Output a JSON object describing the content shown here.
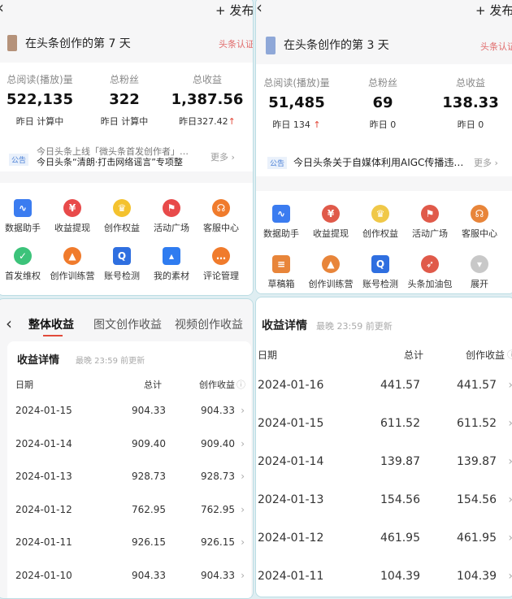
{
  "left_dashboard": {
    "publish_label": "+ 发布",
    "header_title": "在头条创作的第 7 天",
    "cert_label": "头条认证",
    "stats": [
      {
        "label": "总阅读(播放)量",
        "value": "522,135",
        "yesterday": "昨日 计算中",
        "trend": ""
      },
      {
        "label": "总粉丝",
        "value": "322",
        "yesterday": "昨日 计算中",
        "trend": ""
      },
      {
        "label": "总收益",
        "value": "1,387.56",
        "yesterday": "昨日327.42",
        "trend": "↑"
      }
    ],
    "notice": {
      "tag": "公告",
      "line1": "今日头条上线「微头条首发创作者」…",
      "line2": "今日头条“清朗·打击网络谣言”专项整",
      "more": "更多 ›"
    },
    "grid": [
      {
        "label": "数据助手",
        "icon": "chart-icon",
        "color": "#3b7cf0"
      },
      {
        "label": "收益提现",
        "icon": "yuan-icon",
        "color": "#e84a4a"
      },
      {
        "label": "创作权益",
        "icon": "crown-icon",
        "color": "#f4c22e"
      },
      {
        "label": "活动广场",
        "icon": "flag-icon",
        "color": "#e84a4a"
      },
      {
        "label": "客服中心",
        "icon": "headset-icon",
        "color": "#f07b2c"
      },
      {
        "label": "首发维权",
        "icon": "shield-icon",
        "color": "#3cc37a"
      },
      {
        "label": "创作训练营",
        "icon": "graduation-cap-icon",
        "color": "#f07b2c"
      },
      {
        "label": "账号检测",
        "icon": "search-shield-icon",
        "color": "#2f6fe0"
      },
      {
        "label": "我的素材",
        "icon": "image-icon",
        "color": "#2f7cf0"
      },
      {
        "label": "评论管理",
        "icon": "comment-icon",
        "color": "#f07b2c"
      }
    ]
  },
  "right_dashboard": {
    "publish_label": "+ 发布",
    "header_title": "在头条创作的第 3 天",
    "cert_label": "头条认证",
    "stats": [
      {
        "label": "总阅读(播放)量",
        "value": "51,485",
        "yesterday": "昨日 134",
        "trend": "↑"
      },
      {
        "label": "总粉丝",
        "value": "69",
        "yesterday": "昨日 0",
        "trend": ""
      },
      {
        "label": "总收益",
        "value": "138.33",
        "yesterday": "昨日 0",
        "trend": ""
      }
    ],
    "notice": {
      "tag": "公告",
      "line1": "今日头条关于自媒体利用AIGC传播违…",
      "more": "更多 ›"
    },
    "grid": [
      {
        "label": "数据助手",
        "icon": "chart-icon",
        "color": "#3b7cf0"
      },
      {
        "label": "收益提现",
        "icon": "yuan-icon",
        "color": "#e05a4a"
      },
      {
        "label": "创作权益",
        "icon": "crown-icon",
        "color": "#f0c848"
      },
      {
        "label": "活动广场",
        "icon": "flag-icon",
        "color": "#e05a4a"
      },
      {
        "label": "客服中心",
        "icon": "headset-icon",
        "color": "#e8853a"
      },
      {
        "label": "草稿箱",
        "icon": "draft-icon",
        "color": "#e8853a"
      },
      {
        "label": "创作训练营",
        "icon": "graduation-cap-icon",
        "color": "#e8853a"
      },
      {
        "label": "账号检测",
        "icon": "search-shield-icon",
        "color": "#2f6fe0"
      },
      {
        "label": "头条加油包",
        "icon": "rocket-icon",
        "color": "#e05a4a"
      },
      {
        "label": "展开",
        "icon": "expand-icon",
        "color": "#c8c8c8"
      }
    ]
  },
  "left_earnings": {
    "tabs": [
      "整体收益",
      "图文创作收益",
      "视频创作收益"
    ],
    "active_tab": 0,
    "title": "收益详情",
    "subtitle": "最晚 23:59 前更新",
    "columns": [
      "日期",
      "总计",
      "创作收益"
    ],
    "rows": [
      [
        "2024-01-15",
        "904.33",
        "904.33"
      ],
      [
        "2024-01-14",
        "909.40",
        "909.40"
      ],
      [
        "2024-01-13",
        "928.73",
        "928.73"
      ],
      [
        "2024-01-12",
        "762.95",
        "762.95"
      ],
      [
        "2024-01-11",
        "926.15",
        "926.15"
      ],
      [
        "2024-01-10",
        "904.33",
        "904.33"
      ]
    ]
  },
  "right_earnings": {
    "title": "收益详情",
    "subtitle": "最晚 23:59 前更新",
    "columns": [
      "日期",
      "总计",
      "创作收益"
    ],
    "rows": [
      [
        "2024-01-16",
        "441.57",
        "441.57"
      ],
      [
        "2024-01-15",
        "611.52",
        "611.52"
      ],
      [
        "2024-01-14",
        "139.87",
        "139.87"
      ],
      [
        "2024-01-13",
        "154.56",
        "154.56"
      ],
      [
        "2024-01-12",
        "461.95",
        "461.95"
      ],
      [
        "2024-01-11",
        "104.39",
        "104.39"
      ]
    ]
  }
}
